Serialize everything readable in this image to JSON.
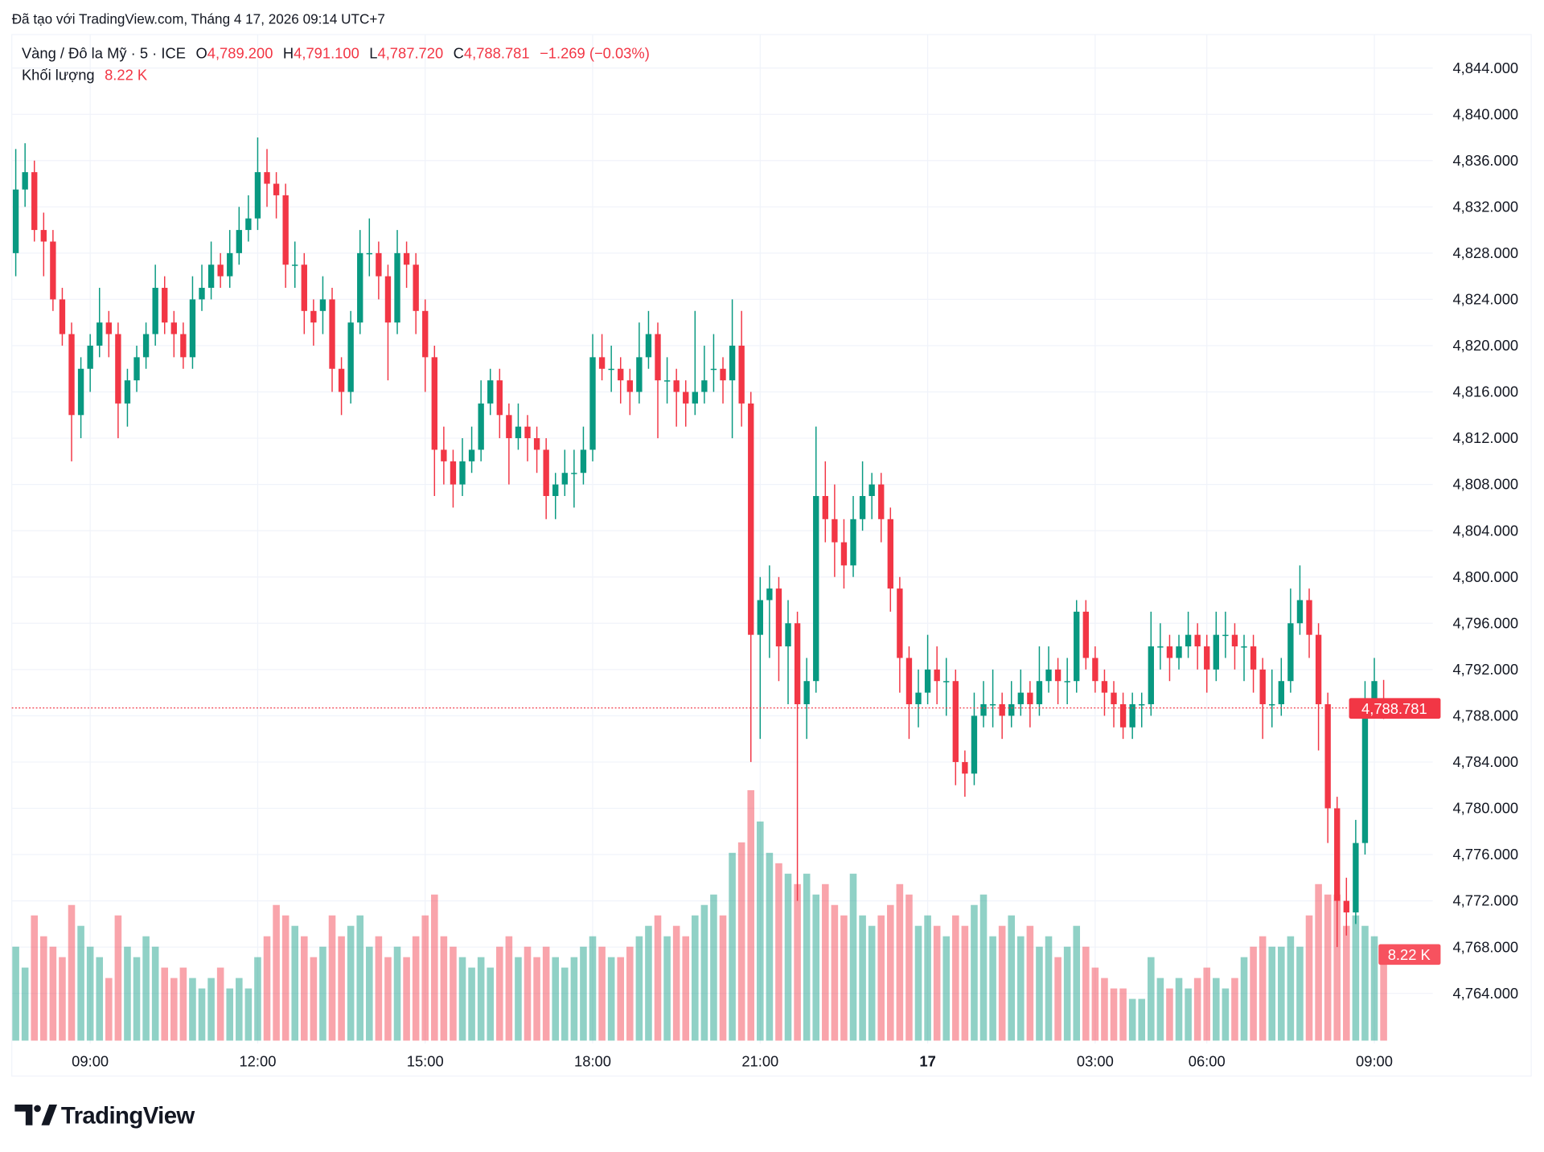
{
  "caption": "Đã tạo với TradingView.com, Tháng 4 17, 2026 09:14 UTC+7",
  "legend": {
    "symbol": "Vàng / Đô la Mỹ · 5 · ICE",
    "o_label": "O",
    "open": "4,789.200",
    "h_label": "H",
    "high": "4,791.100",
    "l_label": "L",
    "low": "4,787.720",
    "c_label": "C",
    "close": "4,788.781",
    "change": "−1.269 (−0.03%)",
    "volume_label": "Khối lượng",
    "volume_value": "8.22 K"
  },
  "badges": {
    "last_price": "4,788.781",
    "last_volume": "8.22 K"
  },
  "logo": {
    "text": "TradingView"
  },
  "colors": {
    "up": "#089981",
    "down": "#f23645",
    "grid": "#f0f3fa",
    "text": "#131722"
  },
  "chart_data": {
    "type": "candlestick",
    "title": "",
    "interval": "5",
    "ylim": [
      4760,
      4846
    ],
    "y_ticks": [
      "4,844.000",
      "4,840.000",
      "4,836.000",
      "4,832.000",
      "4,828.000",
      "4,824.000",
      "4,820.000",
      "4,816.000",
      "4,812.000",
      "4,808.000",
      "4,804.000",
      "4,800.000",
      "4,796.000",
      "4,792.000",
      "4,788.000",
      "4,784.000",
      "4,780.000",
      "4,776.000",
      "4,772.000",
      "4,768.000",
      "4,764.000"
    ],
    "x_ticks": [
      {
        "label": "09:00",
        "index": 8
      },
      {
        "label": "12:00",
        "index": 26
      },
      {
        "label": "15:00",
        "index": 44
      },
      {
        "label": "18:00",
        "index": 62
      },
      {
        "label": "21:00",
        "index": 80
      },
      {
        "label": "17",
        "index": 98,
        "bold": true
      },
      {
        "label": "03:00",
        "index": 116
      },
      {
        "label": "06:00",
        "index": 128
      },
      {
        "label": "09:00",
        "index": 146
      }
    ],
    "grid": true,
    "last_price": 4788.781,
    "volume_unit": "K",
    "candles_fields": [
      "open",
      "high",
      "low",
      "close",
      "volume_k"
    ],
    "candles": [
      [
        4828,
        4837,
        4826,
        4833.5,
        9
      ],
      [
        4833.5,
        4837.5,
        4832,
        4835,
        7
      ],
      [
        4835,
        4836,
        4829,
        4830,
        12
      ],
      [
        4830,
        4831.5,
        4826,
        4829,
        10
      ],
      [
        4829,
        4830,
        4823,
        4824,
        9
      ],
      [
        4824,
        4825,
        4820,
        4821,
        8
      ],
      [
        4821,
        4822,
        4810,
        4814,
        13
      ],
      [
        4814,
        4819,
        4812,
        4818,
        11
      ],
      [
        4818,
        4821,
        4816,
        4820,
        9
      ],
      [
        4820,
        4825,
        4819,
        4822,
        8
      ],
      [
        4822,
        4823,
        4819,
        4821,
        6
      ],
      [
        4821,
        4822,
        4812,
        4815,
        12
      ],
      [
        4815,
        4818,
        4813,
        4817,
        9
      ],
      [
        4817,
        4820,
        4816,
        4819,
        8
      ],
      [
        4819,
        4822,
        4818,
        4821,
        10
      ],
      [
        4821,
        4827,
        4820,
        4825,
        9
      ],
      [
        4825,
        4826,
        4821,
        4822,
        7
      ],
      [
        4822,
        4823,
        4819,
        4821,
        6
      ],
      [
        4821,
        4822,
        4818,
        4819,
        7
      ],
      [
        4819,
        4826,
        4818,
        4824,
        6
      ],
      [
        4824,
        4827,
        4823,
        4825,
        5
      ],
      [
        4825,
        4829,
        4824,
        4827,
        6
      ],
      [
        4827,
        4828,
        4825,
        4826,
        7
      ],
      [
        4826,
        4830,
        4825,
        4828,
        5
      ],
      [
        4828,
        4832,
        4827,
        4830,
        6
      ],
      [
        4830,
        4833,
        4829,
        4831,
        5
      ],
      [
        4831,
        4838,
        4830,
        4835,
        8
      ],
      [
        4835,
        4837,
        4832,
        4834,
        10
      ],
      [
        4834,
        4835,
        4831,
        4833,
        13
      ],
      [
        4833,
        4834,
        4825,
        4827,
        12
      ],
      [
        4827,
        4829,
        4825,
        4827,
        11
      ],
      [
        4827,
        4828,
        4821,
        4823,
        10
      ],
      [
        4823,
        4824,
        4820,
        4822,
        8
      ],
      [
        4823,
        4826,
        4821,
        4824,
        9
      ],
      [
        4824,
        4825,
        4816,
        4818,
        12
      ],
      [
        4818,
        4819,
        4814,
        4816,
        10
      ],
      [
        4816,
        4823,
        4815,
        4822,
        11
      ],
      [
        4822,
        4830,
        4821,
        4828,
        12
      ],
      [
        4828,
        4831,
        4826,
        4828,
        9
      ],
      [
        4828,
        4829,
        4824,
        4826,
        10
      ],
      [
        4826,
        4827,
        4817,
        4822,
        8
      ],
      [
        4822,
        4830,
        4821,
        4828,
        9
      ],
      [
        4828,
        4829,
        4825,
        4827,
        8
      ],
      [
        4827,
        4828,
        4821,
        4823,
        10
      ],
      [
        4823,
        4824,
        4816,
        4819,
        12
      ],
      [
        4819,
        4820,
        4807,
        4811,
        14
      ],
      [
        4811,
        4813,
        4808,
        4810,
        10
      ],
      [
        4810,
        4811,
        4806,
        4808,
        9
      ],
      [
        4808,
        4812,
        4807,
        4810,
        8
      ],
      [
        4810,
        4813,
        4809,
        4811,
        7
      ],
      [
        4811,
        4817,
        4810,
        4815,
        8
      ],
      [
        4815,
        4818,
        4814,
        4817,
        7
      ],
      [
        4817,
        4818,
        4812,
        4814,
        9
      ],
      [
        4814,
        4815,
        4808,
        4812,
        10
      ],
      [
        4812,
        4815,
        4811,
        4813,
        8
      ],
      [
        4813,
        4814,
        4810,
        4812,
        9
      ],
      [
        4812,
        4813,
        4809,
        4811,
        8
      ],
      [
        4811,
        4812,
        4805,
        4807,
        9
      ],
      [
        4807,
        4809,
        4805,
        4808,
        8
      ],
      [
        4808,
        4811,
        4807,
        4809,
        7
      ],
      [
        4809,
        4811,
        4806,
        4809,
        8
      ],
      [
        4809,
        4813,
        4808,
        4811,
        9
      ],
      [
        4811,
        4821,
        4810,
        4819,
        10
      ],
      [
        4819,
        4821,
        4817,
        4818,
        9
      ],
      [
        4818,
        4820,
        4816,
        4818,
        8
      ],
      [
        4818,
        4819,
        4815,
        4817,
        8
      ],
      [
        4817,
        4818,
        4814,
        4816,
        9
      ],
      [
        4816,
        4822,
        4815,
        4819,
        10
      ],
      [
        4819,
        4823,
        4818,
        4821,
        11
      ],
      [
        4821,
        4822,
        4812,
        4817,
        12
      ],
      [
        4817,
        4819,
        4815,
        4817,
        10
      ],
      [
        4817,
        4818,
        4813,
        4816,
        11
      ],
      [
        4816,
        4817,
        4813,
        4815,
        10
      ],
      [
        4815,
        4823,
        4814,
        4816,
        12
      ],
      [
        4816,
        4820,
        4815,
        4817,
        13
      ],
      [
        4818,
        4821,
        4816,
        4818,
        14
      ],
      [
        4818,
        4819,
        4815,
        4817,
        12
      ],
      [
        4817,
        4824,
        4812,
        4820,
        18
      ],
      [
        4820,
        4823,
        4813,
        4815,
        19
      ],
      [
        4815,
        4816,
        4784,
        4795,
        24
      ],
      [
        4795,
        4800,
        4786,
        4798,
        21
      ],
      [
        4798,
        4801,
        4793,
        4799,
        18
      ],
      [
        4799,
        4800,
        4791,
        4794,
        17
      ],
      [
        4794,
        4798,
        4789,
        4796,
        16
      ],
      [
        4796,
        4797,
        4772,
        4789,
        15
      ],
      [
        4789,
        4793,
        4786,
        4791,
        16
      ],
      [
        4791,
        4813,
        4790,
        4807,
        14
      ],
      [
        4807,
        4810,
        4803,
        4805,
        15
      ],
      [
        4805,
        4808,
        4800,
        4803,
        13
      ],
      [
        4803,
        4805,
        4799,
        4801,
        12
      ],
      [
        4801,
        4807,
        4800,
        4805,
        16
      ],
      [
        4805,
        4810,
        4804,
        4807,
        12
      ],
      [
        4807,
        4809,
        4805,
        4808,
        11
      ],
      [
        4808,
        4809,
        4803,
        4805,
        12
      ],
      [
        4805,
        4806,
        4797,
        4799,
        13
      ],
      [
        4799,
        4800,
        4790,
        4793,
        15
      ],
      [
        4793,
        4794,
        4786,
        4789,
        14
      ],
      [
        4789,
        4792,
        4787,
        4790,
        11
      ],
      [
        4790,
        4795,
        4789,
        4792,
        12
      ],
      [
        4792,
        4794,
        4789,
        4791,
        11
      ],
      [
        4791,
        4793,
        4788,
        4791,
        10
      ],
      [
        4791,
        4792,
        4782,
        4784,
        12
      ],
      [
        4784,
        4785,
        4781,
        4783,
        11
      ],
      [
        4783,
        4790,
        4782,
        4788,
        13
      ],
      [
        4788,
        4791,
        4787,
        4789,
        14
      ],
      [
        4789,
        4792,
        4787,
        4789,
        10
      ],
      [
        4789,
        4790,
        4786,
        4788,
        11
      ],
      [
        4788,
        4791,
        4787,
        4789,
        12
      ],
      [
        4789,
        4792,
        4788,
        4790,
        10
      ],
      [
        4790,
        4791,
        4787,
        4789,
        11
      ],
      [
        4789,
        4794,
        4788,
        4791,
        9
      ],
      [
        4791,
        4794,
        4790,
        4792,
        10
      ],
      [
        4792,
        4793,
        4789,
        4791,
        8
      ],
      [
        4791,
        4793,
        4789,
        4791,
        9
      ],
      [
        4791,
        4798,
        4790,
        4797,
        11
      ],
      [
        4797,
        4798,
        4792,
        4793,
        9
      ],
      [
        4793,
        4794,
        4790,
        4791,
        7
      ],
      [
        4791,
        4792,
        4788,
        4790,
        6
      ],
      [
        4790,
        4791,
        4787,
        4789,
        5
      ],
      [
        4789,
        4790,
        4786,
        4787,
        5
      ],
      [
        4787,
        4790,
        4786,
        4789,
        4
      ],
      [
        4789,
        4790,
        4787,
        4789,
        4
      ],
      [
        4789,
        4797,
        4788,
        4794,
        8
      ],
      [
        4794,
        4796,
        4792,
        4794,
        6
      ],
      [
        4794,
        4795,
        4791,
        4793,
        5
      ],
      [
        4793,
        4795,
        4792,
        4794,
        6
      ],
      [
        4794,
        4797,
        4793,
        4795,
        5
      ],
      [
        4795,
        4796,
        4792,
        4794,
        6
      ],
      [
        4794,
        4795,
        4790,
        4792,
        7
      ],
      [
        4792,
        4797,
        4791,
        4795,
        6
      ],
      [
        4795,
        4797,
        4793,
        4795,
        5
      ],
      [
        4795,
        4796,
        4792,
        4794,
        6
      ],
      [
        4794,
        4795,
        4791,
        4794,
        8
      ],
      [
        4794,
        4795,
        4790,
        4792,
        9
      ],
      [
        4792,
        4793,
        4786,
        4789,
        10
      ],
      [
        4789,
        4792,
        4787,
        4789,
        9
      ],
      [
        4789,
        4793,
        4788,
        4791,
        9
      ],
      [
        4791,
        4799,
        4790,
        4796,
        10
      ],
      [
        4796,
        4801,
        4795,
        4798,
        9
      ],
      [
        4798,
        4799,
        4793,
        4795,
        12
      ],
      [
        4795,
        4796,
        4785,
        4789,
        15
      ],
      [
        4789,
        4790,
        4777,
        4780,
        14
      ],
      [
        4780,
        4781,
        4768,
        4772,
        14
      ],
      [
        4772,
        4774,
        4769,
        4771,
        11
      ],
      [
        4771,
        4779,
        4770,
        4777,
        12
      ],
      [
        4777,
        4791,
        4776,
        4789,
        11
      ],
      [
        4789,
        4793,
        4788,
        4791,
        10
      ],
      [
        4789.2,
        4791.1,
        4787.72,
        4788.781,
        8.22
      ]
    ]
  }
}
